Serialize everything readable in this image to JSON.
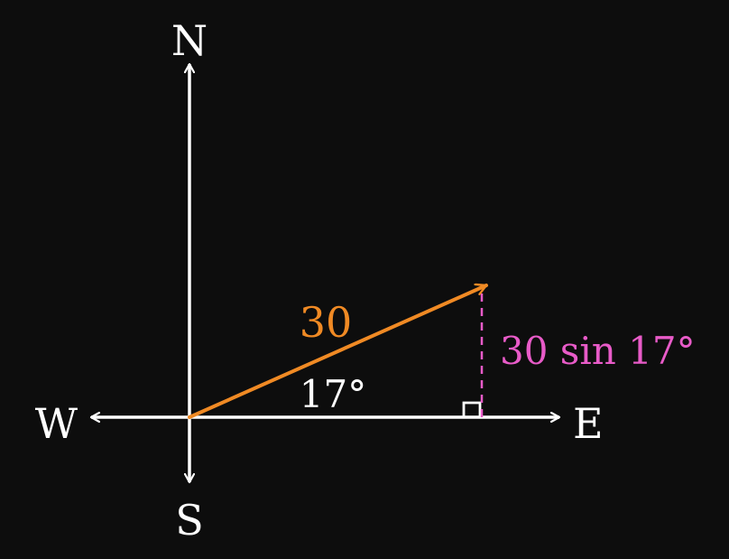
{
  "directions": {
    "north": "N",
    "south": "S",
    "east": "E",
    "west": "W"
  },
  "vector": {
    "magnitude_label": "30",
    "angle_label": "17°",
    "component_label": "30 sin 17°",
    "magnitude": 30,
    "angle_deg": 17
  },
  "colors": {
    "background": "#0d0d0d",
    "axes": "#ffffff",
    "vector": "#f08a24",
    "component": "#e85bc8"
  }
}
